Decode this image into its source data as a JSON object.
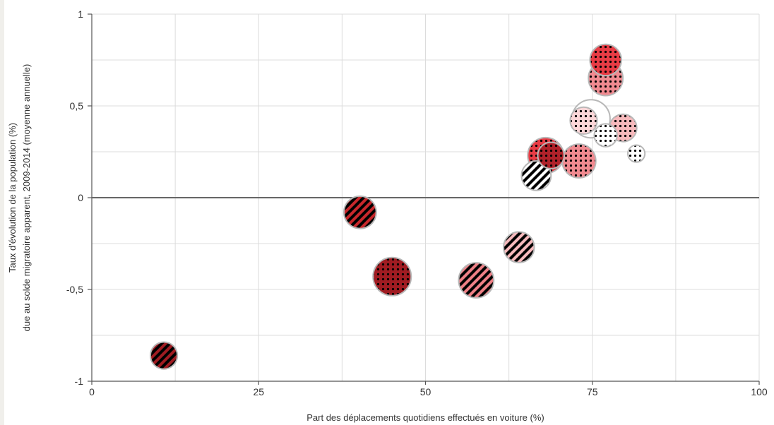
{
  "chart_data": {
    "type": "scatter",
    "title": "",
    "xlabel": "Part des déplacements quotidiens effectués en voiture (%)",
    "ylabel_lines": [
      "Taux d'évolution de la population (%)",
      "due au solde migratoire apparent, 2009-2014 (moyenne annuelle)"
    ],
    "xlim": [
      0,
      100
    ],
    "ylim": [
      -1,
      1
    ],
    "x_ticks": [
      {
        "value": 0,
        "label": "0"
      },
      {
        "value": 25,
        "label": "25"
      },
      {
        "value": 50,
        "label": "50"
      },
      {
        "value": 75,
        "label": "75"
      },
      {
        "value": 100,
        "label": "100"
      }
    ],
    "y_ticks": [
      {
        "value": 1,
        "label": "1"
      },
      {
        "value": 0.5,
        "label": "0,5"
      },
      {
        "value": 0,
        "label": "0"
      },
      {
        "value": -0.5,
        "label": "-0,5"
      },
      {
        "value": -1,
        "label": "-1"
      }
    ],
    "grid": true,
    "legend": "none",
    "points": [
      {
        "x": 10.8,
        "y": -0.86,
        "size": 0.5,
        "color": "#a01c22",
        "pattern": "stripes"
      },
      {
        "x": 40.2,
        "y": -0.08,
        "size": 0.72,
        "color": "#c8282c",
        "pattern": "stripes"
      },
      {
        "x": 45.0,
        "y": -0.43,
        "size": 1.0,
        "color": "#a01c22",
        "pattern": "dots"
      },
      {
        "x": 57.6,
        "y": -0.45,
        "size": 0.85,
        "color": "#ee8086",
        "pattern": "stripes"
      },
      {
        "x": 64.0,
        "y": -0.27,
        "size": 0.65,
        "color": "#f6b9bc",
        "pattern": "stripes"
      },
      {
        "x": 66.6,
        "y": 0.12,
        "size": 0.6,
        "color": "#ffffff",
        "pattern": "stripes"
      },
      {
        "x": 68.0,
        "y": 0.23,
        "size": 0.88,
        "color": "#e83c45",
        "pattern": "dots"
      },
      {
        "x": 68.8,
        "y": 0.23,
        "size": 0.48,
        "color": "#b0222a",
        "pattern": "dots"
      },
      {
        "x": 73.0,
        "y": 0.2,
        "size": 0.78,
        "color": "#f08a90",
        "pattern": "dots"
      },
      {
        "x": 74.8,
        "y": 0.43,
        "size": 1.0,
        "color": "#ffffff",
        "pattern": "none"
      },
      {
        "x": 73.7,
        "y": 0.42,
        "size": 0.5,
        "color": "#fbd6d8",
        "pattern": "dots"
      },
      {
        "x": 77.0,
        "y": 0.75,
        "size": 0.68,
        "color": "#e83c45",
        "pattern": "dots"
      },
      {
        "x": 77.0,
        "y": 0.65,
        "size": 0.82,
        "color": "#f08a90",
        "pattern": "dots"
      },
      {
        "x": 77.0,
        "y": 0.34,
        "size": 0.36,
        "color": "#ffffff",
        "pattern": "dots"
      },
      {
        "x": 79.6,
        "y": 0.38,
        "size": 0.52,
        "color": "#f6b9bc",
        "pattern": "dots"
      },
      {
        "x": 81.6,
        "y": 0.24,
        "size": 0.2,
        "color": "#ffffff",
        "pattern": "dots"
      }
    ]
  }
}
